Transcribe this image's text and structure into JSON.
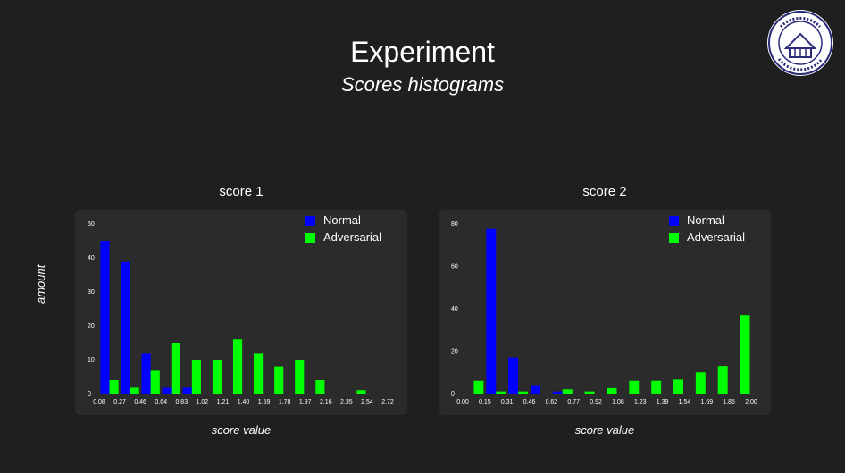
{
  "slide": {
    "title": "Experiment",
    "subtitle": "Scores histograms"
  },
  "logo": {
    "text": "NORTHWESTERN POLYTECHNICAL UNIVERSITY"
  },
  "colors": {
    "background": "#1f1f1f",
    "panel": "#2b2b2b",
    "normal": "#0000ff",
    "adversarial": "#00ff00",
    "text": "#ffffff"
  },
  "chart_data": [
    {
      "type": "bar",
      "title": "score 1",
      "xlabel": "score value",
      "ylabel": "amount",
      "ylim": [
        0,
        50
      ],
      "yticks": [
        0,
        10,
        20,
        30,
        40,
        50
      ],
      "xticks": [
        "0.08",
        "0.27",
        "0.46",
        "0.64",
        "0.83",
        "1.02",
        "1.21",
        "1.40",
        "1.59",
        "1.78",
        "1.97",
        "2.16",
        "2.35",
        "2.54",
        "2.72"
      ],
      "legend": "top-right",
      "grid": false,
      "series": [
        {
          "name": "Normal",
          "color": "#0000ff",
          "values": [
            45,
            39,
            12,
            2,
            2,
            0,
            0,
            0,
            0,
            0,
            0,
            0,
            0,
            0
          ]
        },
        {
          "name": "Adversarial",
          "color": "#00ff00",
          "values": [
            4,
            2,
            7,
            15,
            10,
            10,
            16,
            12,
            8,
            10,
            4,
            0,
            1,
            0
          ]
        }
      ]
    },
    {
      "type": "bar",
      "title": "score 2",
      "xlabel": "score value",
      "ylabel": "",
      "ylim": [
        0,
        80
      ],
      "yticks": [
        0,
        20,
        40,
        60,
        80
      ],
      "xticks": [
        "0.00",
        "0.15",
        "0.31",
        "0.46",
        "0.62",
        "0.77",
        "0.92",
        "1.08",
        "1.23",
        "1.39",
        "1.54",
        "1.69",
        "1.85",
        "2.00"
      ],
      "legend": "top-right",
      "grid": false,
      "series": [
        {
          "name": "Normal",
          "color": "#0000ff",
          "values": [
            0,
            78,
            17,
            4,
            1,
            0,
            0,
            0,
            0,
            0,
            0,
            0,
            0
          ]
        },
        {
          "name": "Adversarial",
          "color": "#00ff00",
          "values": [
            6,
            1,
            1,
            0,
            2,
            1,
            3,
            6,
            6,
            7,
            10,
            13,
            37
          ]
        }
      ]
    }
  ]
}
